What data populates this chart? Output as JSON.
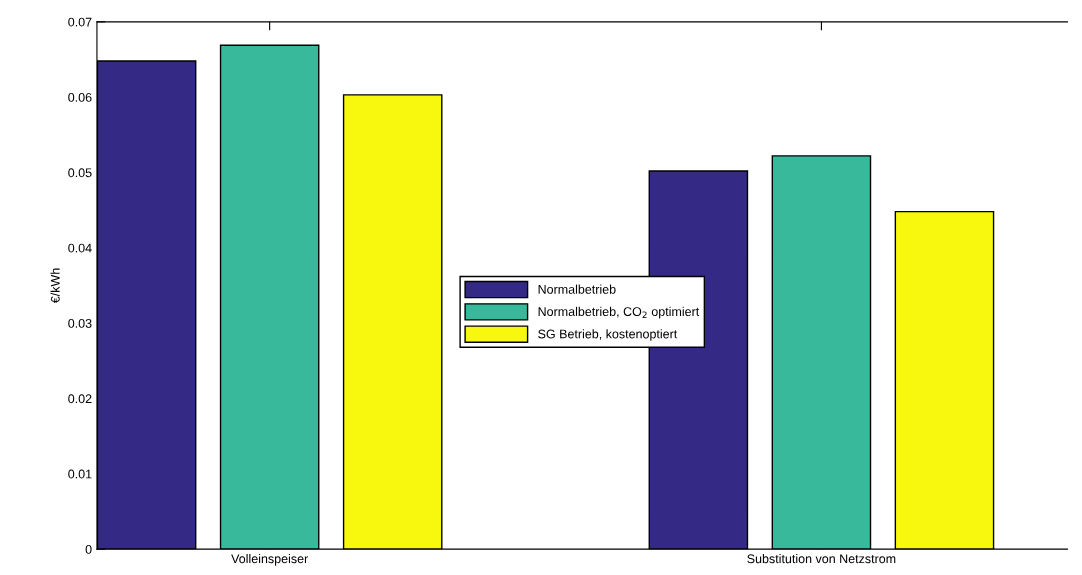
{
  "chart_data": {
    "type": "bar",
    "ylabel": "€/kWh",
    "categories": [
      "Volleinspeiser",
      "Substitution von Netzstrom"
    ],
    "series": [
      {
        "name": "Normalbetrieb",
        "color": "#342a85",
        "values": [
          0.0648,
          0.0502
        ]
      },
      {
        "name": "Normalbetrieb, CO$_{2}$ optimiert",
        "color": "#38b99c",
        "values": [
          0.0669,
          0.0522
        ]
      },
      {
        "name": "SG Betrieb, kostenoptiert",
        "color": "#f8f80f",
        "values": [
          0.0603,
          0.0448
        ]
      }
    ],
    "ylim": [
      0,
      0.07
    ],
    "yticks": [
      0,
      0.01,
      0.02,
      0.03,
      0.04,
      0.05,
      0.06,
      0.07
    ],
    "grid": false,
    "legend": "center"
  }
}
